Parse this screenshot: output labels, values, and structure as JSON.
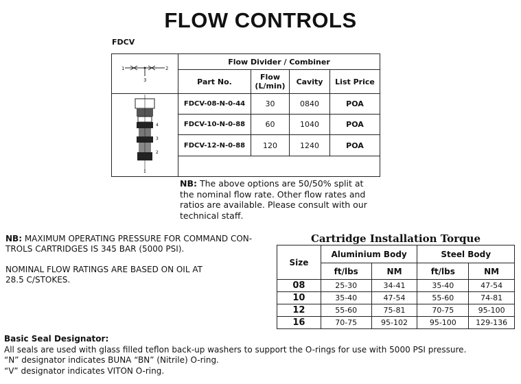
{
  "title": "FLOW CONTROLS",
  "section_code": "FDCV",
  "flow_table": {
    "group_header": "Flow Divider / Combiner",
    "headers": [
      "Part No.",
      "Flow (L/min)",
      "Cavity",
      "List Price"
    ],
    "flow_header_line1": "Flow",
    "flow_header_line2": "(L/min)",
    "rows": [
      {
        "part": "FDCV-08-N-0-44",
        "flow": "30",
        "cavity": "0840",
        "price": "POA"
      },
      {
        "part": "FDCV-10-N-0-88",
        "flow": "60",
        "cavity": "1040",
        "price": "POA"
      },
      {
        "part": "FDCV-12-N-0-88",
        "flow": "120",
        "cavity": "1240",
        "price": "POA"
      }
    ]
  },
  "images": {
    "symbol_ports": [
      "1",
      "2",
      "3"
    ],
    "cartridge_ports": [
      "1",
      "2",
      "3",
      "4"
    ]
  },
  "nb_flow": {
    "label": "NB:",
    "text": " The above options are 50/50% split at the nominal flow rate. Other flow rates and ratios are available. Please consult with our technical staff."
  },
  "nb_pressure": {
    "label": "NB:",
    "text": " MAXIMUM OPERATING PRESSURE FOR COMMAND CON-TROLS CARTRIDGES IS 345 BAR (5000 PSI).",
    "line1": " MAXIMUM OPERATING PRESSURE FOR COMMAND CON-",
    "line2": "TROLS CARTRIDGES IS 345 BAR (5000 PSI).",
    "nominal_line1": "NOMINAL FLOW RATINGS ARE BASED ON OIL AT",
    "nominal_line2": "28.5 C/STOKES."
  },
  "torque": {
    "title": "Cartridge Installation Torque",
    "size_header": "Size",
    "aluminium_header": "Aluminium Body",
    "steel_header": "Steel Body",
    "unit_ft": "ft/lbs",
    "unit_nm": "NM",
    "rows": [
      {
        "size": "08",
        "al_ft": "25-30",
        "al_nm": "34-41",
        "st_ft": "35-40",
        "st_nm": "47-54"
      },
      {
        "size": "10",
        "al_ft": "35-40",
        "al_nm": "47-54",
        "st_ft": "55-60",
        "st_nm": "74-81"
      },
      {
        "size": "12",
        "al_ft": "55-60",
        "al_nm": "75-81",
        "st_ft": "70-75",
        "st_nm": "95-100"
      },
      {
        "size": "16",
        "al_ft": "70-75",
        "al_nm": "95-102",
        "st_ft": "95-100",
        "st_nm": "129-136"
      }
    ]
  },
  "seal": {
    "heading": "Basic Seal Designator:",
    "lines": [
      "All seals are used with glass filled teflon back-up washers to support the O-rings for use with 5000 PSI pressure.",
      "“N” designator indicates BUNA “BN” (Nitrile) O-ring.",
      "“V” designator indicates VITON O-ring."
    ]
  }
}
